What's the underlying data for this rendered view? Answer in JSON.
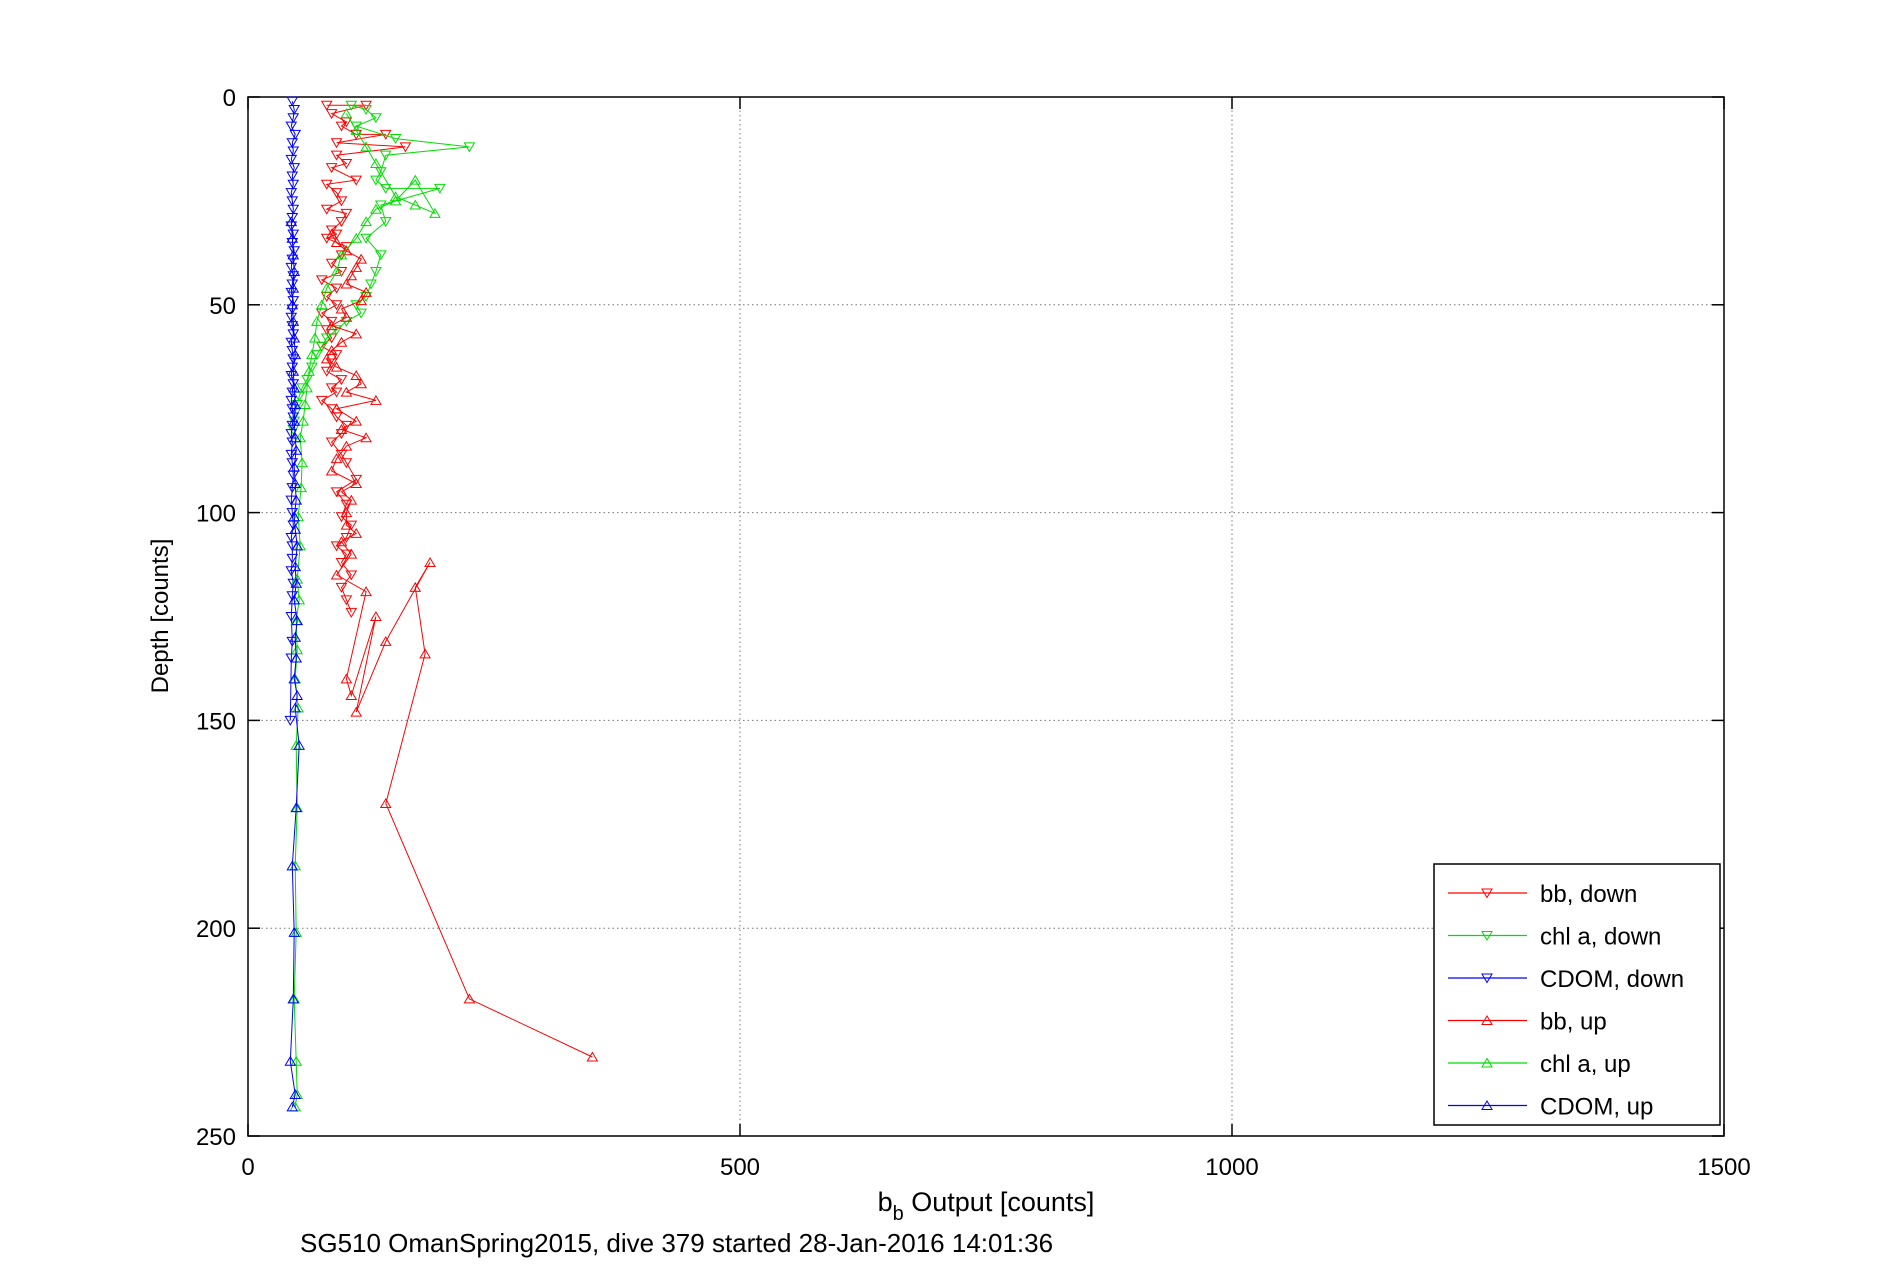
{
  "chart_data": {
    "type": "scatter",
    "title": "",
    "xlabel_main": "b",
    "xlabel_sub": "b",
    "xlabel_rest": " Output [counts]",
    "ylabel": "Depth [counts]",
    "caption": "SG510 OmanSpring2015, dive 379 started 28-Jan-2016 14:01:36",
    "xlim": [
      0,
      1500
    ],
    "ylim": [
      0,
      250
    ],
    "y_reversed": true,
    "grid": "on",
    "legend_position": "bottom-right",
    "xticks": [
      0,
      500,
      1000,
      1500
    ],
    "yticks": [
      0,
      50,
      100,
      150,
      200,
      250
    ],
    "xtick_labels": [
      "0",
      "500",
      "1000",
      "1500"
    ],
    "ytick_labels": [
      "0",
      "50",
      "100",
      "150",
      "200",
      "250"
    ],
    "series": [
      {
        "name": "bb, down",
        "color": "#ff0000",
        "marker": "triangle-down",
        "connected": true,
        "x": [
          80,
          120,
          85,
          100,
          95,
          110,
          140,
          90,
          160,
          90,
          100,
          85,
          110,
          80,
          90,
          95,
          80,
          100,
          95,
          85,
          90,
          80,
          100,
          95,
          85,
          95,
          75,
          90,
          80,
          90,
          75,
          85,
          80,
          85,
          75,
          90,
          85,
          80,
          95,
          85,
          90,
          75,
          85,
          90,
          100,
          95,
          85,
          95,
          100,
          110,
          90,
          100,
          95,
          105,
          100,
          90,
          100,
          95,
          105,
          95,
          100,
          105
        ],
        "y": [
          2,
          2,
          4,
          6,
          7,
          9,
          9,
          11,
          12,
          14,
          16,
          17,
          20,
          21,
          23,
          25,
          27,
          28,
          30,
          32,
          33,
          34,
          36,
          38,
          40,
          42,
          44,
          46,
          48,
          50,
          52,
          54,
          56,
          58,
          60,
          62,
          64,
          66,
          68,
          70,
          71,
          73,
          75,
          77,
          79,
          81,
          83,
          86,
          88,
          92,
          95,
          98,
          101,
          103,
          106,
          108,
          110,
          112,
          115,
          118,
          121,
          124
        ]
      },
      {
        "name": "chl a, down",
        "color": "#00dd00",
        "marker": "triangle-down",
        "connected": true,
        "x": [
          105,
          120,
          130,
          110,
          150,
          225,
          140,
          135,
          130,
          140,
          195,
          135,
          140,
          120,
          135,
          130,
          125,
          120,
          110,
          115,
          100,
          90,
          80,
          75,
          70,
          65,
          60,
          55,
          52,
          50,
          48,
          47,
          46
        ],
        "y": [
          2,
          3,
          5,
          7,
          10,
          12,
          14,
          18,
          20,
          22,
          22,
          26,
          30,
          34,
          38,
          42,
          45,
          48,
          50,
          52,
          54,
          56,
          58,
          60,
          62,
          65,
          68,
          70,
          72,
          74,
          76,
          78,
          80
        ]
      },
      {
        "name": "CDOM, down",
        "color": "#0000ff",
        "marker": "triangle-down",
        "connected": true,
        "x": [
          45,
          47,
          46,
          44,
          48,
          45,
          46,
          44,
          47,
          45,
          46,
          44,
          45,
          46,
          45,
          44,
          46,
          45,
          47,
          45,
          44,
          46,
          45,
          44,
          46,
          45,
          44,
          45,
          46,
          44,
          45,
          46,
          45,
          44,
          46,
          45,
          44,
          45,
          46,
          45,
          44,
          45,
          44,
          45,
          46,
          45,
          44,
          45,
          46,
          44,
          45,
          45,
          44,
          46,
          45,
          44,
          45,
          44,
          43
        ],
        "y": [
          1,
          3,
          5,
          7,
          9,
          11,
          13,
          15,
          17,
          19,
          21,
          23,
          25,
          27,
          29,
          31,
          33,
          35,
          37,
          39,
          41,
          43,
          45,
          47,
          49,
          51,
          53,
          55,
          57,
          59,
          61,
          63,
          65,
          67,
          69,
          71,
          73,
          75,
          77,
          79,
          81,
          83,
          86,
          88,
          91,
          94,
          97,
          100,
          103,
          106,
          108,
          111,
          114,
          117,
          120,
          125,
          131,
          135,
          150
        ]
      },
      {
        "name": "bb, up",
        "color": "#ff0000",
        "marker": "triangle-up",
        "connected": true,
        "x": [
          350,
          225,
          140,
          180,
          170,
          185,
          140,
          110,
          130,
          105,
          100,
          120,
          90,
          105,
          95,
          110,
          100,
          100,
          105,
          95,
          110,
          85,
          90,
          100,
          120,
          95,
          110,
          90,
          130,
          100,
          115,
          110,
          90,
          80,
          85,
          95,
          110,
          85,
          100,
          95,
          115,
          120,
          100,
          105,
          110,
          115,
          100,
          90,
          85
        ],
        "y": [
          231,
          217,
          170,
          134,
          118,
          112,
          131,
          148,
          125,
          144,
          140,
          119,
          115,
          110,
          107,
          105,
          103,
          100,
          97,
          95,
          93,
          90,
          87,
          84,
          82,
          80,
          78,
          75,
          73,
          71,
          69,
          67,
          65,
          63,
          61,
          59,
          57,
          55,
          53,
          51,
          49,
          47,
          45,
          43,
          41,
          39,
          37,
          35,
          33
        ]
      },
      {
        "name": "chl a, up",
        "color": "#00dd00",
        "marker": "triangle-up",
        "connected": true,
        "x": [
          48,
          50,
          49,
          47,
          49,
          48,
          50,
          49,
          51,
          48,
          50,
          49,
          52,
          50,
          53,
          51,
          54,
          55,
          53,
          56,
          58,
          60,
          62,
          65,
          68,
          70,
          75,
          80,
          90,
          95,
          110,
          120,
          130,
          150,
          170,
          190,
          170,
          150,
          130,
          120,
          110,
          100
        ],
        "y": [
          243,
          240,
          232,
          217,
          201,
          185,
          171,
          156,
          147,
          140,
          133,
          126,
          121,
          116,
          108,
          101,
          94,
          88,
          82,
          78,
          74,
          70,
          66,
          62,
          58,
          54,
          50,
          46,
          42,
          38,
          34,
          30,
          27,
          25,
          20,
          28,
          26,
          24,
          16,
          12,
          8,
          4
        ]
      },
      {
        "name": "CDOM, up",
        "color": "#0000ff",
        "marker": "triangle-up",
        "connected": true,
        "x": [
          45,
          48,
          43,
          46,
          47,
          45,
          49,
          52,
          48,
          50,
          47,
          49,
          48,
          50,
          47,
          49,
          48,
          50,
          48,
          47,
          49,
          48,
          47,
          49,
          48,
          47,
          48,
          47,
          46,
          48,
          47,
          46,
          45,
          46,
          47,
          46,
          45,
          44
        ],
        "y": [
          243,
          240,
          232,
          217,
          201,
          185,
          171,
          156,
          147,
          144,
          140,
          135,
          130,
          126,
          121,
          117,
          113,
          108,
          104,
          101,
          97,
          93,
          89,
          85,
          82,
          78,
          74,
          70,
          66,
          62,
          58,
          54,
          50,
          46,
          42,
          38,
          34,
          30
        ]
      }
    ]
  }
}
